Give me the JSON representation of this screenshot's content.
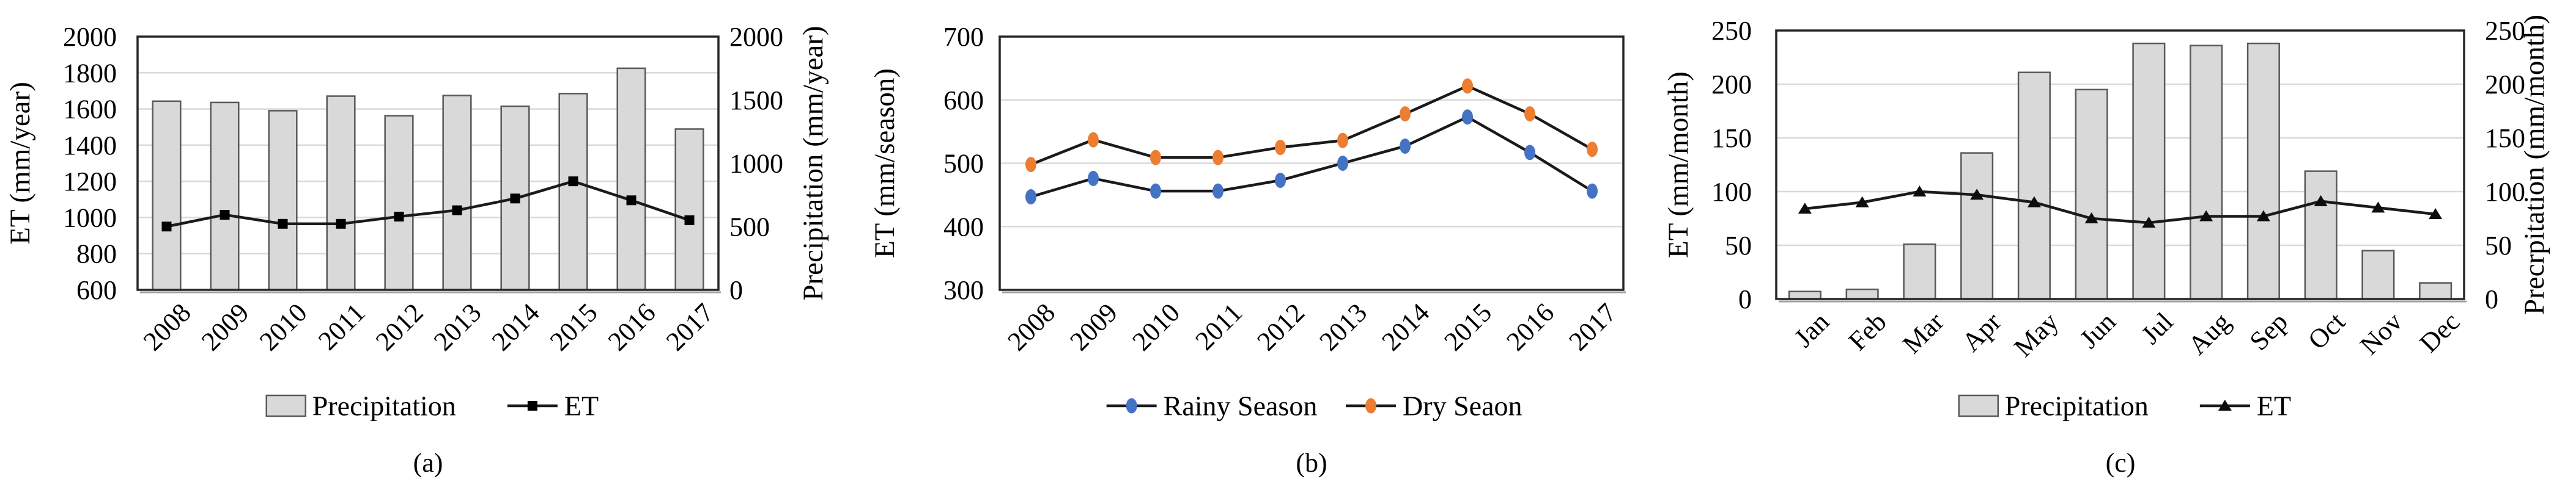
{
  "figure": {
    "background": "#ffffff"
  },
  "colors": {
    "gridline": "#d9d9d9",
    "plot_border": "#262626",
    "axis_shadow": "#a0a0a0",
    "bar_fill": "#d9d9d9",
    "bar_stroke": "#595959",
    "line_black": "#1a1a1a",
    "series_blue": "#4472C4",
    "series_orange": "#ED7D31"
  },
  "chart_data": [
    {
      "panel": "a",
      "caption": "(a)",
      "type": "bar",
      "subtype": "bar+line combo, dual axis",
      "grid": true,
      "legend_position": "bottom",
      "categories": [
        "2008",
        "2009",
        "2010",
        "2011",
        "2012",
        "2013",
        "2014",
        "2015",
        "2016",
        "2017"
      ],
      "left_axis": {
        "title": "ET (mm/year)",
        "min": 600,
        "max": 2000,
        "step": 200,
        "ticks": [
          600,
          800,
          1000,
          1200,
          1400,
          1600,
          1800,
          2000
        ]
      },
      "right_axis": {
        "title": "Precipitation (mm/year)",
        "min": 0,
        "max": 2000,
        "step": 500,
        "ticks": [
          0,
          500,
          1000,
          1500,
          2000
        ]
      },
      "series": [
        {
          "name": "Precipitation",
          "kind": "bar",
          "axis": "right",
          "fill": "#d9d9d9",
          "stroke": "#595959",
          "values": [
            1490,
            1480,
            1415,
            1530,
            1375,
            1535,
            1450,
            1550,
            1750,
            1270
          ]
        },
        {
          "name": "ET",
          "kind": "line",
          "axis": "left",
          "marker": "square",
          "marker_color": "#000000",
          "line_color": "#1a1a1a",
          "values": [
            950,
            1015,
            965,
            965,
            1005,
            1040,
            1105,
            1200,
            1095,
            985
          ]
        }
      ]
    },
    {
      "panel": "b",
      "caption": "(b)",
      "type": "line",
      "subtype": "two line series, single axis",
      "grid": true,
      "legend_position": "bottom",
      "categories": [
        "2008",
        "2009",
        "2010",
        "2011",
        "2012",
        "2013",
        "2014",
        "2015",
        "2016",
        "2017"
      ],
      "left_axis": {
        "title": "ET (mm/season)",
        "min": 300,
        "max": 700,
        "step": 100,
        "ticks": [
          300,
          400,
          500,
          600,
          700
        ]
      },
      "series": [
        {
          "name": "Rainy Season",
          "kind": "line",
          "axis": "left",
          "marker": "oval",
          "marker_color": "#4472C4",
          "line_color": "#1a1a1a",
          "values": [
            447,
            476,
            456,
            456,
            473,
            500,
            527,
            573,
            517,
            456
          ]
        },
        {
          "name": "Dry Seaon",
          "kind": "line",
          "axis": "left",
          "marker": "oval",
          "marker_color": "#ED7D31",
          "line_color": "#1a1a1a",
          "values": [
            498,
            537,
            509,
            509,
            525,
            536,
            578,
            622,
            578,
            522
          ]
        }
      ]
    },
    {
      "panel": "c",
      "caption": "(c)",
      "type": "bar",
      "subtype": "bar+line combo, dual axis",
      "grid": true,
      "legend_position": "bottom",
      "categories": [
        "Jan",
        "Feb",
        "Mar",
        "Apr",
        "May",
        "Jun",
        "Jul",
        "Aug",
        "Sep",
        "Oct",
        "Nov",
        "Dec"
      ],
      "left_axis": {
        "title": "ET (mm/month)",
        "min": 0,
        "max": 250,
        "step": 50,
        "ticks": [
          0,
          50,
          100,
          150,
          200,
          250
        ]
      },
      "right_axis": {
        "title": "Precrpitation (mm/month)",
        "min": 0,
        "max": 250,
        "step": 50,
        "ticks": [
          0,
          50,
          100,
          150,
          200,
          250
        ]
      },
      "series": [
        {
          "name": "Precipitation",
          "kind": "bar",
          "axis": "right",
          "fill": "#d9d9d9",
          "stroke": "#595959",
          "values": [
            7,
            9,
            51,
            136,
            211,
            195,
            238,
            236,
            238,
            119,
            45,
            15
          ]
        },
        {
          "name": "ET",
          "kind": "line",
          "axis": "left",
          "marker": "triangle",
          "marker_color": "#0d0d0d",
          "line_color": "#1a1a1a",
          "values": [
            84,
            90,
            100,
            97,
            90,
            75,
            71,
            77,
            77,
            91,
            85,
            79
          ]
        }
      ]
    }
  ]
}
